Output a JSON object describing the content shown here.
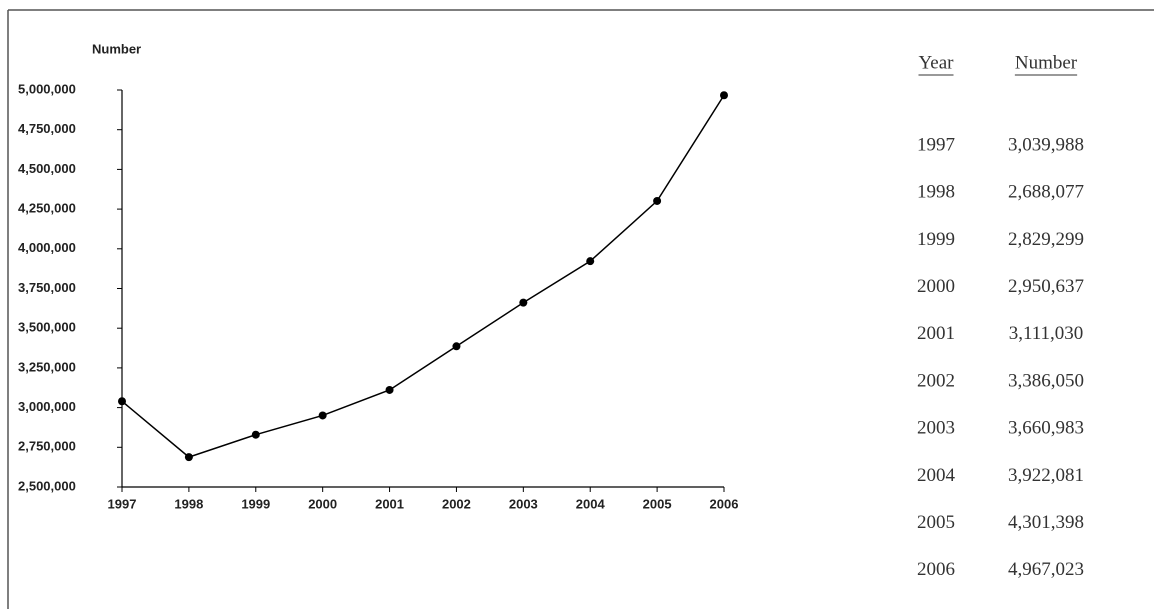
{
  "chart_data": {
    "type": "line",
    "y_label": "Number",
    "x": [
      1997,
      1998,
      1999,
      2000,
      2001,
      2002,
      2003,
      2004,
      2005,
      2006
    ],
    "xlim": [
      1997,
      2006
    ],
    "xticks": [
      1997,
      1998,
      1999,
      2000,
      2001,
      2002,
      2003,
      2004,
      2005,
      2006
    ],
    "series": [
      {
        "color": "#000000",
        "values": [
          3039988,
          2688077,
          2829299,
          2950637,
          3111030,
          3386050,
          3660983,
          3922081,
          4301398,
          4967023
        ]
      }
    ],
    "ylim": [
      2500000,
      5000000
    ],
    "yticks": [
      {
        "value": 2500000,
        "label": "2,500,000"
      },
      {
        "value": 2750000,
        "label": "2,750,000"
      },
      {
        "value": 3000000,
        "label": "3,000,000"
      },
      {
        "value": 3250000,
        "label": "3,250,000"
      },
      {
        "value": 3500000,
        "label": "3,500,000"
      },
      {
        "value": 3750000,
        "label": "3,750,000"
      },
      {
        "value": 4000000,
        "label": "4,000,000"
      },
      {
        "value": 4250000,
        "label": "4,250,000"
      },
      {
        "value": 4500000,
        "label": "4,500,000"
      },
      {
        "value": 4750000,
        "label": "4,750,000"
      },
      {
        "value": 5000000,
        "label": "5,000,000"
      }
    ]
  },
  "table": {
    "headers": [
      "Year",
      "Number"
    ],
    "rows": [
      [
        "1997",
        "3,039,988"
      ],
      [
        "1998",
        "2,688,077"
      ],
      [
        "1999",
        "2,829,299"
      ],
      [
        "2000",
        "2,950,637"
      ],
      [
        "2001",
        "3,111,030"
      ],
      [
        "2002",
        "3,386,050"
      ],
      [
        "2003",
        "3,660,983"
      ],
      [
        "2004",
        "3,922,081"
      ],
      [
        "2005",
        "4,301,398"
      ],
      [
        "2006",
        "4,967,023"
      ]
    ]
  }
}
